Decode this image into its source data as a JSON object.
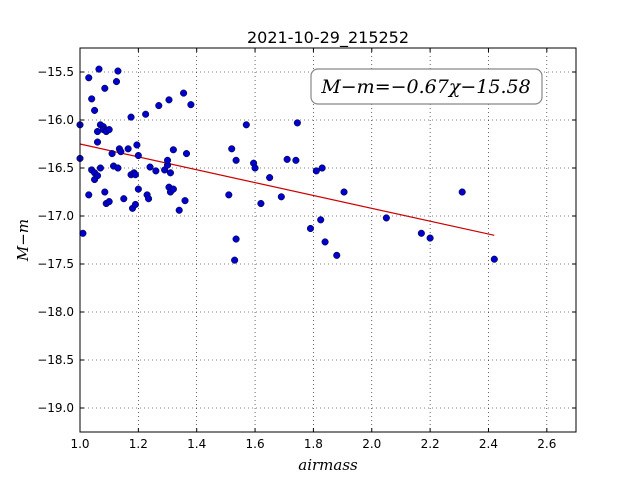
{
  "chart_data": {
    "type": "scatter",
    "title": "2021-10-29_215252",
    "xlabel": "airmass",
    "ylabel": "M−m",
    "xlim": [
      1.0,
      2.7
    ],
    "ylim": [
      -19.25,
      -15.25
    ],
    "x_ticks": [
      "1.0",
      "1.2",
      "1.4",
      "1.6",
      "1.8",
      "2.0",
      "2.2",
      "2.4",
      "2.6"
    ],
    "y_ticks": [
      "−15.5",
      "−16.0",
      "−16.5",
      "−17.0",
      "−17.5",
      "−18.0",
      "−18.5",
      "−19.0"
    ],
    "grid": true,
    "annotation": "M−m=−0.67χ−15.58",
    "annotation_placement": "top-right",
    "points_color": "#0000cc",
    "fit_color": "#cc0000",
    "fit_line": {
      "slope": -0.67,
      "intercept": -15.58,
      "x_range": [
        1.0,
        2.42
      ]
    },
    "points": [
      [
        1.0,
        -16.05
      ],
      [
        1.0,
        -16.4
      ],
      [
        1.01,
        -17.18
      ],
      [
        1.03,
        -15.56
      ],
      [
        1.03,
        -16.78
      ],
      [
        1.04,
        -15.78
      ],
      [
        1.04,
        -16.52
      ],
      [
        1.05,
        -15.9
      ],
      [
        1.05,
        -16.55
      ],
      [
        1.05,
        -16.62
      ],
      [
        1.06,
        -16.12
      ],
      [
        1.06,
        -16.23
      ],
      [
        1.06,
        -16.58
      ],
      [
        1.065,
        -15.47
      ],
      [
        1.07,
        -16.05
      ],
      [
        1.07,
        -16.5
      ],
      [
        1.08,
        -16.07
      ],
      [
        1.08,
        -16.1
      ],
      [
        1.085,
        -15.67
      ],
      [
        1.085,
        -16.75
      ],
      [
        1.09,
        -16.12
      ],
      [
        1.09,
        -16.87
      ],
      [
        1.1,
        -16.1
      ],
      [
        1.1,
        -16.85
      ],
      [
        1.11,
        -16.35
      ],
      [
        1.115,
        -16.48
      ],
      [
        1.125,
        -15.6
      ],
      [
        1.13,
        -16.5
      ],
      [
        1.13,
        -15.49
      ],
      [
        1.135,
        -16.3
      ],
      [
        1.14,
        -16.33
      ],
      [
        1.15,
        -16.82
      ],
      [
        1.165,
        -16.3
      ],
      [
        1.175,
        -15.97
      ],
      [
        1.175,
        -16.57
      ],
      [
        1.18,
        -16.92
      ],
      [
        1.185,
        -16.55
      ],
      [
        1.19,
        -16.57
      ],
      [
        1.19,
        -16.88
      ],
      [
        1.195,
        -16.26
      ],
      [
        1.2,
        -16.37
      ],
      [
        1.2,
        -16.72
      ],
      [
        1.225,
        -15.94
      ],
      [
        1.23,
        -16.78
      ],
      [
        1.235,
        -16.82
      ],
      [
        1.24,
        -16.49
      ],
      [
        1.26,
        -16.53
      ],
      [
        1.27,
        -15.85
      ],
      [
        1.29,
        -16.52
      ],
      [
        1.3,
        -16.47
      ],
      [
        1.3,
        -16.42
      ],
      [
        1.305,
        -15.79
      ],
      [
        1.305,
        -16.7
      ],
      [
        1.31,
        -16.75
      ],
      [
        1.31,
        -16.55
      ],
      [
        1.32,
        -16.72
      ],
      [
        1.32,
        -16.31
      ],
      [
        1.34,
        -16.94
      ],
      [
        1.355,
        -15.72
      ],
      [
        1.36,
        -16.84
      ],
      [
        1.365,
        -16.35
      ],
      [
        1.38,
        -15.84
      ],
      [
        1.51,
        -16.78
      ],
      [
        1.52,
        -16.3
      ],
      [
        1.53,
        -17.46
      ],
      [
        1.535,
        -16.42
      ],
      [
        1.535,
        -17.24
      ],
      [
        1.57,
        -16.05
      ],
      [
        1.595,
        -16.45
      ],
      [
        1.6,
        -16.5
      ],
      [
        1.62,
        -16.87
      ],
      [
        1.65,
        -16.6
      ],
      [
        1.69,
        -16.8
      ],
      [
        1.71,
        -16.41
      ],
      [
        1.74,
        -16.42
      ],
      [
        1.745,
        -16.03
      ],
      [
        1.79,
        -17.13
      ],
      [
        1.81,
        -16.53
      ],
      [
        1.825,
        -17.04
      ],
      [
        1.83,
        -16.5
      ],
      [
        1.84,
        -17.27
      ],
      [
        1.88,
        -17.41
      ],
      [
        1.905,
        -16.75
      ],
      [
        2.05,
        -17.02
      ],
      [
        2.17,
        -17.18
      ],
      [
        2.2,
        -17.23
      ],
      [
        2.31,
        -16.75
      ],
      [
        2.42,
        -17.45
      ]
    ]
  }
}
